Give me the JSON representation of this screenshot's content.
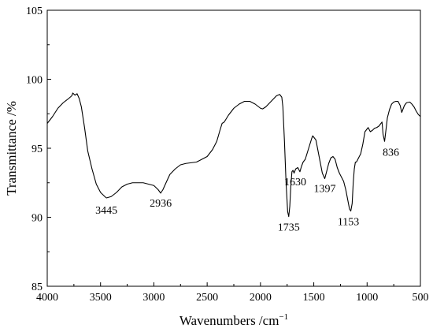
{
  "chart_data": {
    "type": "line",
    "title": "",
    "xlabel": "Wavenumbers /cm",
    "xlabel_sup": "−1",
    "ylabel": "Transmittance /%",
    "xlim": [
      4000,
      500
    ],
    "ylim": [
      85,
      105
    ],
    "x_reversed": true,
    "xticks": [
      4000,
      3500,
      3000,
      2500,
      2000,
      1500,
      1000,
      500
    ],
    "yticks": [
      85,
      90,
      95,
      100,
      105
    ],
    "grid": false,
    "legend": "none",
    "series": [
      {
        "color": "#000000",
        "points": [
          [
            4000,
            96.8
          ],
          [
            3950,
            97.3
          ],
          [
            3900,
            97.9
          ],
          [
            3850,
            98.3
          ],
          [
            3800,
            98.6
          ],
          [
            3770,
            98.8
          ],
          [
            3760,
            99.0
          ],
          [
            3740,
            98.85
          ],
          [
            3720,
            98.95
          ],
          [
            3700,
            98.6
          ],
          [
            3680,
            98.0
          ],
          [
            3650,
            96.5
          ],
          [
            3620,
            94.8
          ],
          [
            3580,
            93.5
          ],
          [
            3540,
            92.4
          ],
          [
            3500,
            91.8
          ],
          [
            3460,
            91.5
          ],
          [
            3445,
            91.4
          ],
          [
            3400,
            91.5
          ],
          [
            3350,
            91.8
          ],
          [
            3300,
            92.2
          ],
          [
            3250,
            92.4
          ],
          [
            3200,
            92.5
          ],
          [
            3150,
            92.5
          ],
          [
            3100,
            92.5
          ],
          [
            3050,
            92.4
          ],
          [
            3000,
            92.3
          ],
          [
            2960,
            92.0
          ],
          [
            2936,
            91.75
          ],
          [
            2915,
            92.0
          ],
          [
            2880,
            92.6
          ],
          [
            2850,
            93.1
          ],
          [
            2800,
            93.5
          ],
          [
            2750,
            93.8
          ],
          [
            2700,
            93.9
          ],
          [
            2650,
            93.95
          ],
          [
            2600,
            94.0
          ],
          [
            2550,
            94.2
          ],
          [
            2500,
            94.4
          ],
          [
            2450,
            94.9
          ],
          [
            2410,
            95.5
          ],
          [
            2380,
            96.3
          ],
          [
            2360,
            96.8
          ],
          [
            2340,
            96.9
          ],
          [
            2300,
            97.4
          ],
          [
            2250,
            97.9
          ],
          [
            2200,
            98.2
          ],
          [
            2150,
            98.4
          ],
          [
            2100,
            98.4
          ],
          [
            2050,
            98.2
          ],
          [
            2000,
            97.9
          ],
          [
            1980,
            97.85
          ],
          [
            1950,
            98.0
          ],
          [
            1900,
            98.4
          ],
          [
            1850,
            98.8
          ],
          [
            1820,
            98.9
          ],
          [
            1800,
            98.7
          ],
          [
            1790,
            98.0
          ],
          [
            1775,
            95.5
          ],
          [
            1760,
            92.5
          ],
          [
            1745,
            90.4
          ],
          [
            1735,
            90.05
          ],
          [
            1725,
            90.8
          ],
          [
            1715,
            92.3
          ],
          [
            1705,
            93.3
          ],
          [
            1695,
            93.4
          ],
          [
            1685,
            93.2
          ],
          [
            1670,
            93.5
          ],
          [
            1650,
            93.6
          ],
          [
            1630,
            93.3
          ],
          [
            1615,
            93.7
          ],
          [
            1600,
            94.0
          ],
          [
            1580,
            94.2
          ],
          [
            1560,
            94.7
          ],
          [
            1540,
            95.2
          ],
          [
            1520,
            95.7
          ],
          [
            1510,
            95.9
          ],
          [
            1500,
            95.8
          ],
          [
            1480,
            95.6
          ],
          [
            1460,
            94.8
          ],
          [
            1440,
            94.0
          ],
          [
            1420,
            93.2
          ],
          [
            1397,
            92.8
          ],
          [
            1380,
            93.3
          ],
          [
            1360,
            93.9
          ],
          [
            1340,
            94.3
          ],
          [
            1320,
            94.4
          ],
          [
            1300,
            94.2
          ],
          [
            1280,
            93.6
          ],
          [
            1260,
            93.2
          ],
          [
            1240,
            92.9
          ],
          [
            1220,
            92.6
          ],
          [
            1200,
            92.0
          ],
          [
            1180,
            91.2
          ],
          [
            1165,
            90.6
          ],
          [
            1153,
            90.45
          ],
          [
            1140,
            91.0
          ],
          [
            1130,
            92.5
          ],
          [
            1120,
            93.5
          ],
          [
            1110,
            94.0
          ],
          [
            1100,
            94.0
          ],
          [
            1080,
            94.3
          ],
          [
            1060,
            94.6
          ],
          [
            1040,
            95.3
          ],
          [
            1020,
            96.2
          ],
          [
            1000,
            96.4
          ],
          [
            990,
            96.5
          ],
          [
            970,
            96.2
          ],
          [
            950,
            96.3
          ],
          [
            930,
            96.45
          ],
          [
            910,
            96.5
          ],
          [
            890,
            96.6
          ],
          [
            870,
            96.8
          ],
          [
            860,
            96.9
          ],
          [
            850,
            96.0
          ],
          [
            836,
            95.5
          ],
          [
            825,
            96.2
          ],
          [
            810,
            97.2
          ],
          [
            790,
            97.8
          ],
          [
            770,
            98.2
          ],
          [
            750,
            98.35
          ],
          [
            730,
            98.4
          ],
          [
            710,
            98.4
          ],
          [
            690,
            98.1
          ],
          [
            675,
            97.6
          ],
          [
            665,
            97.8
          ],
          [
            650,
            98.1
          ],
          [
            630,
            98.3
          ],
          [
            600,
            98.35
          ],
          [
            580,
            98.2
          ],
          [
            560,
            98.0
          ],
          [
            540,
            97.7
          ],
          [
            520,
            97.45
          ],
          [
            500,
            97.3
          ]
        ]
      }
    ],
    "annotations": [
      {
        "text": "3445",
        "x": 3445,
        "y": 91.4
      },
      {
        "text": "2936",
        "x": 2936,
        "y": 91.75
      },
      {
        "text": "1735",
        "x": 1735,
        "y": 90.05
      },
      {
        "text": "1630",
        "x": 1630,
        "y": 93.3
      },
      {
        "text": "1397",
        "x": 1397,
        "y": 92.8
      },
      {
        "text": "1153",
        "x": 1153,
        "y": 90.45
      },
      {
        "text": "836",
        "x": 836,
        "y": 95.5
      }
    ]
  }
}
